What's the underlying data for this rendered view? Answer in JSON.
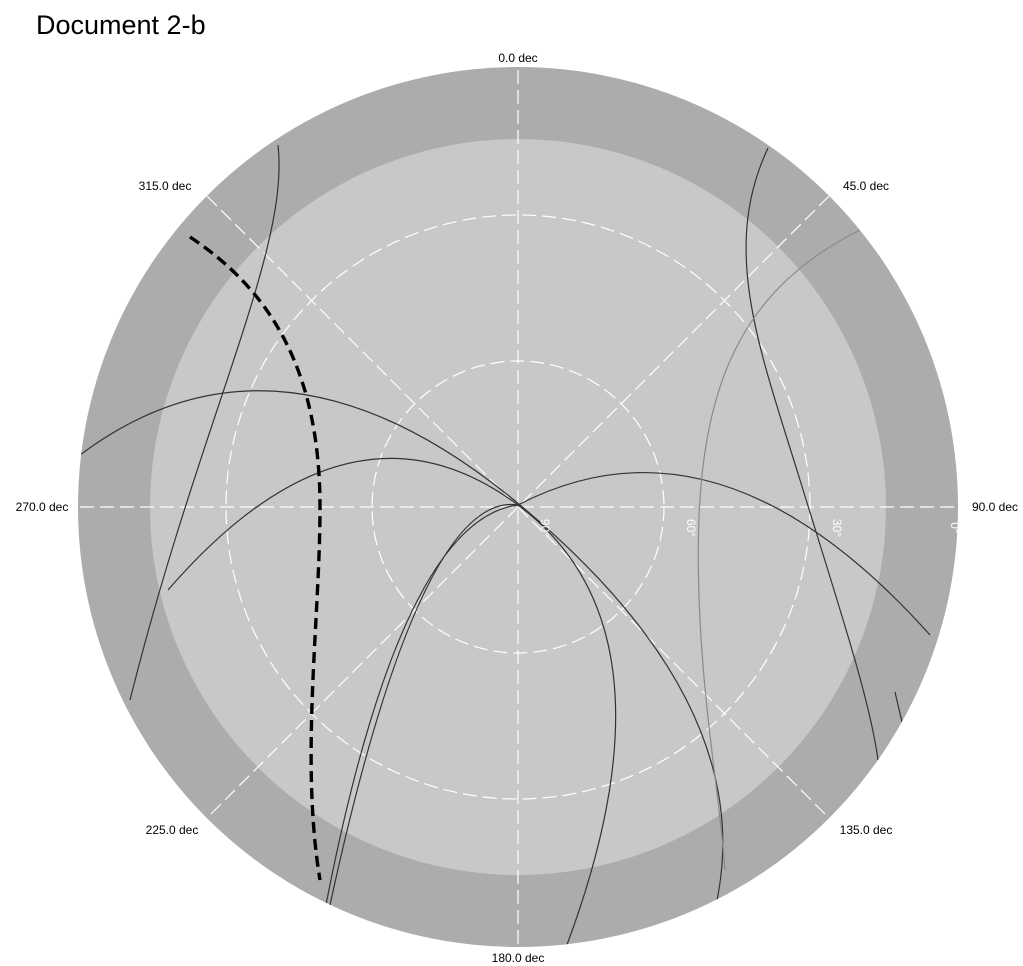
{
  "title": "Document 2-b",
  "colors": {
    "outer_ring": "#acacac",
    "inner_disc": "#c8c8c8",
    "grid": "#ffffff",
    "track": "#333333",
    "track_light": "#8a8a8a",
    "dashed_track": "#000000"
  },
  "azimuth_labels": [
    {
      "az": 0,
      "text": "0.0 dec"
    },
    {
      "az": 45,
      "text": "45.0 dec"
    },
    {
      "az": 90,
      "text": "90.0 dec"
    },
    {
      "az": 135,
      "text": "135.0 dec"
    },
    {
      "az": 180,
      "text": "180.0 dec"
    },
    {
      "az": 225,
      "text": "225.0 dec"
    },
    {
      "az": 270,
      "text": "270.0 dec"
    },
    {
      "az": 315,
      "text": "315.0 dec"
    }
  ],
  "elevation_labels": [
    {
      "el": 90,
      "text": "90°"
    },
    {
      "el": 60,
      "text": "60°"
    },
    {
      "el": 30,
      "text": "30°"
    },
    {
      "el": 0,
      "text": "0°"
    }
  ]
}
